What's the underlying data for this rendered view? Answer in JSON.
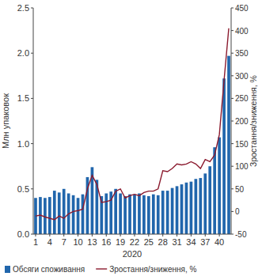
{
  "chart_data": {
    "type": "bar",
    "x_label": "2020",
    "y_label": "Млн упаковок",
    "y2_label": "Зростання/зниження, %",
    "categories": [
      "1",
      null,
      null,
      "4",
      null,
      null,
      "7",
      null,
      null,
      "10",
      null,
      null,
      "13",
      null,
      null,
      "16",
      null,
      null,
      "19",
      null,
      null,
      "22",
      null,
      null,
      "25",
      null,
      null,
      "28",
      null,
      null,
      "31",
      null,
      null,
      "34",
      null,
      null,
      "37",
      null,
      null,
      "40",
      null,
      null
    ],
    "series": [
      {
        "name": "Обсяги споживання",
        "type": "bar",
        "color": "#2166ac",
        "values": [
          0.4,
          0.41,
          0.4,
          0.41,
          0.48,
          0.46,
          0.5,
          0.45,
          0.43,
          0.4,
          0.44,
          0.63,
          0.74,
          0.6,
          0.42,
          0.45,
          0.47,
          0.5,
          0.45,
          0.42,
          0.44,
          0.44,
          0.45,
          0.43,
          0.42,
          0.44,
          0.43,
          0.48,
          0.48,
          0.51,
          0.53,
          0.55,
          0.57,
          0.58,
          0.61,
          0.62,
          0.67,
          0.75,
          0.96,
          1.07,
          1.72,
          1.97
        ]
      },
      {
        "name": "Зростання/зниження, %",
        "type": "line",
        "axis": "y2",
        "color": "#8b1a2e",
        "values": [
          -10,
          -8,
          -12,
          -15,
          -18,
          -10,
          -15,
          -5,
          0,
          2,
          5,
          50,
          80,
          60,
          20,
          22,
          25,
          45,
          50,
          30,
          35,
          38,
          35,
          42,
          45,
          45,
          50,
          90,
          88,
          95,
          105,
          103,
          105,
          110,
          105,
          95,
          115,
          110,
          125,
          170,
          290,
          405
        ]
      }
    ],
    "ylim": [
      0,
      2.5
    ],
    "yticks": [
      {
        "value": 0,
        "label": "0.0"
      },
      0.5,
      {
        "value": 1,
        "label": "1.0"
      },
      1.5,
      {
        "value": 2,
        "label": "2.0"
      },
      2.5
    ],
    "y2lim": [
      -50,
      450
    ],
    "y2ticks": [
      -50,
      0,
      50,
      100,
      150,
      200,
      250,
      300,
      350,
      400,
      450
    ],
    "grid": false,
    "legend": "bottom"
  }
}
